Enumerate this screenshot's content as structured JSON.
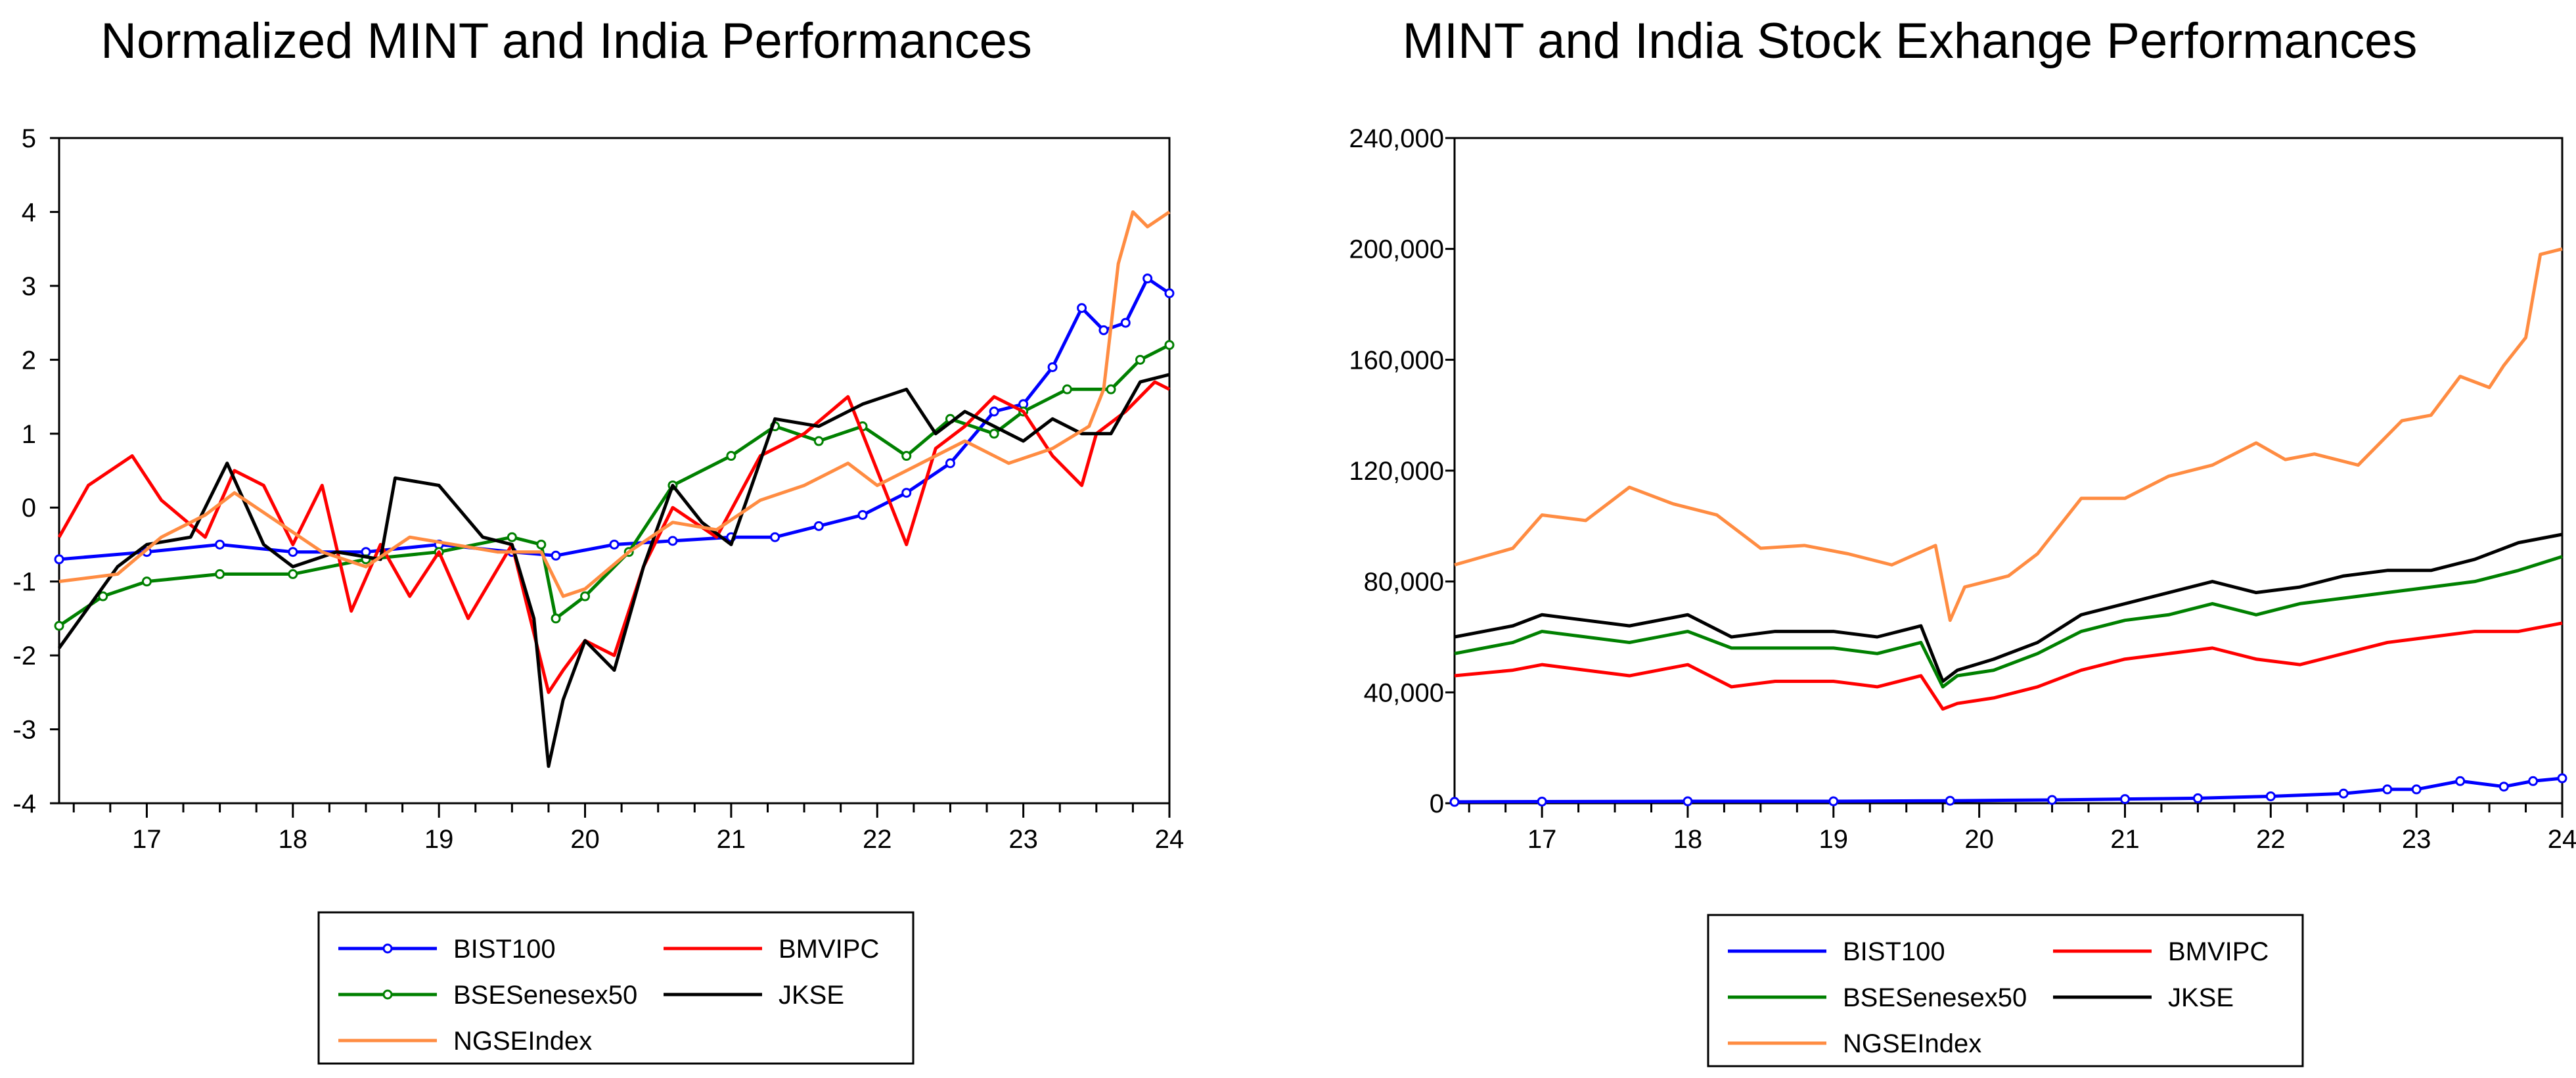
{
  "chart_data": [
    {
      "type": "line",
      "title": "Normalized MINT and India Performances",
      "xlabel": "",
      "ylabel": "",
      "x_tick_labels": [
        "17",
        "18",
        "19",
        "20",
        "21",
        "22",
        "23",
        "24"
      ],
      "x_tick_values": [
        2017,
        2018,
        2019,
        2020,
        2021,
        2022,
        2023,
        2024
      ],
      "xlim": [
        2016.4,
        2024.0
      ],
      "y_tick_labels": [
        "5",
        "4",
        "3",
        "2",
        "1",
        "0",
        "-1",
        "-2",
        "-3",
        "-4"
      ],
      "y_tick_values": [
        5,
        4,
        3,
        2,
        1,
        0,
        -1,
        -2,
        -3,
        -4
      ],
      "ylim": [
        -4,
        5
      ],
      "legend_position": "bottom-center",
      "series": [
        {
          "name": "BIST100",
          "color": "#0000ff",
          "marker": "circle",
          "x": [
            2016.4,
            2017.0,
            2017.5,
            2018.0,
            2018.5,
            2019.0,
            2019.5,
            2019.8,
            2020.2,
            2020.6,
            2021.0,
            2021.3,
            2021.6,
            2021.9,
            2022.2,
            2022.5,
            2022.8,
            2023.0,
            2023.2,
            2023.4,
            2023.55,
            2023.7,
            2023.85,
            2024.0
          ],
          "values": [
            -0.7,
            -0.6,
            -0.5,
            -0.6,
            -0.6,
            -0.5,
            -0.6,
            -0.65,
            -0.5,
            -0.45,
            -0.4,
            -0.4,
            -0.25,
            -0.1,
            0.2,
            0.6,
            1.3,
            1.4,
            1.9,
            2.7,
            2.4,
            2.5,
            3.1,
            2.9
          ]
        },
        {
          "name": "BSESenesex50",
          "color": "#008000",
          "marker": "circle",
          "x": [
            2016.4,
            2016.7,
            2017.0,
            2017.5,
            2018.0,
            2018.5,
            2019.0,
            2019.5,
            2019.7,
            2019.8,
            2020.0,
            2020.3,
            2020.6,
            2021.0,
            2021.3,
            2021.6,
            2021.9,
            2022.2,
            2022.5,
            2022.8,
            2023.0,
            2023.3,
            2023.6,
            2023.8,
            2024.0
          ],
          "values": [
            -1.6,
            -1.2,
            -1.0,
            -0.9,
            -0.9,
            -0.7,
            -0.6,
            -0.4,
            -0.5,
            -1.5,
            -1.2,
            -0.6,
            0.3,
            0.7,
            1.1,
            0.9,
            1.1,
            0.7,
            1.2,
            1.0,
            1.3,
            1.6,
            1.6,
            2.0,
            2.2
          ]
        },
        {
          "name": "BMVIPC",
          "color": "#ff0000",
          "marker": "none",
          "x": [
            2016.4,
            2016.6,
            2016.9,
            2017.1,
            2017.4,
            2017.6,
            2017.8,
            2018.0,
            2018.2,
            2018.4,
            2018.6,
            2018.8,
            2019.0,
            2019.2,
            2019.5,
            2019.75,
            2019.85,
            2020.0,
            2020.2,
            2020.4,
            2020.6,
            2020.9,
            2021.2,
            2021.5,
            2021.8,
            2022.0,
            2022.2,
            2022.4,
            2022.6,
            2022.8,
            2023.0,
            2023.2,
            2023.4,
            2023.5,
            2023.7,
            2023.9,
            2024.0
          ],
          "values": [
            -0.4,
            0.3,
            0.7,
            0.1,
            -0.4,
            0.5,
            0.3,
            -0.5,
            0.3,
            -1.4,
            -0.5,
            -1.2,
            -0.6,
            -1.5,
            -0.5,
            -2.5,
            -2.2,
            -1.8,
            -2.0,
            -0.8,
            0.0,
            -0.4,
            0.7,
            1.0,
            1.5,
            0.5,
            -0.5,
            0.8,
            1.1,
            1.5,
            1.3,
            0.7,
            0.3,
            1.0,
            1.3,
            1.7,
            1.6
          ]
        },
        {
          "name": "JKSE",
          "color": "#000000",
          "marker": "none",
          "x": [
            2016.4,
            2016.8,
            2017.0,
            2017.3,
            2017.55,
            2017.8,
            2018.0,
            2018.3,
            2018.6,
            2018.7,
            2019.0,
            2019.3,
            2019.5,
            2019.65,
            2019.75,
            2019.85,
            2020.0,
            2020.2,
            2020.4,
            2020.6,
            2020.8,
            2021.0,
            2021.3,
            2021.6,
            2021.9,
            2022.2,
            2022.4,
            2022.6,
            2022.8,
            2023.0,
            2023.2,
            2023.4,
            2023.6,
            2023.8,
            2024.0
          ],
          "values": [
            -1.9,
            -0.8,
            -0.5,
            -0.4,
            0.6,
            -0.5,
            -0.8,
            -0.6,
            -0.7,
            0.4,
            0.3,
            -0.4,
            -0.5,
            -1.5,
            -3.5,
            -2.6,
            -1.8,
            -2.2,
            -0.8,
            0.3,
            -0.2,
            -0.5,
            1.2,
            1.1,
            1.4,
            1.6,
            1.0,
            1.3,
            1.1,
            0.9,
            1.2,
            1.0,
            1.0,
            1.7,
            1.8
          ]
        },
        {
          "name": "NGSEIndex",
          "color": "#ff8c42",
          "marker": "none",
          "x": [
            2016.4,
            2016.8,
            2017.1,
            2017.4,
            2017.6,
            2017.9,
            2018.2,
            2018.5,
            2018.8,
            2019.1,
            2019.4,
            2019.7,
            2019.85,
            2020.0,
            2020.3,
            2020.6,
            2020.9,
            2021.2,
            2021.5,
            2021.8,
            2022.0,
            2022.3,
            2022.6,
            2022.9,
            2023.2,
            2023.45,
            2023.55,
            2023.65,
            2023.75,
            2023.85,
            2024.0
          ],
          "values": [
            -1.0,
            -0.9,
            -0.4,
            -0.1,
            0.2,
            -0.2,
            -0.6,
            -0.8,
            -0.4,
            -0.5,
            -0.6,
            -0.6,
            -1.2,
            -1.1,
            -0.6,
            -0.2,
            -0.3,
            0.1,
            0.3,
            0.6,
            0.3,
            0.6,
            0.9,
            0.6,
            0.8,
            1.1,
            1.6,
            3.3,
            4.0,
            3.8,
            4.0
          ]
        }
      ],
      "legend": [
        {
          "label": "BIST100",
          "color": "#0000ff",
          "marker": "circle"
        },
        {
          "label": "BMVIPC",
          "color": "#ff0000",
          "marker": "none"
        },
        {
          "label": "BSESenesex50",
          "color": "#008000",
          "marker": "circle"
        },
        {
          "label": "JKSE",
          "color": "#000000",
          "marker": "none"
        },
        {
          "label": "NGSEIndex",
          "color": "#ff8c42",
          "marker": "none"
        }
      ]
    },
    {
      "type": "line",
      "title": "MINT and India Stock Exhange Performances",
      "xlabel": "",
      "ylabel": "",
      "x_tick_labels": [
        "17",
        "18",
        "19",
        "20",
        "21",
        "22",
        "23",
        "24"
      ],
      "x_tick_values": [
        2017,
        2018,
        2019,
        2020,
        2021,
        2022,
        2023,
        2024
      ],
      "xlim": [
        2016.4,
        2024.0
      ],
      "y_tick_labels": [
        "240,000",
        "200,000",
        "160,000",
        "120,000",
        "80,000",
        "40,000",
        "0"
      ],
      "y_tick_values": [
        240000,
        200000,
        160000,
        120000,
        80000,
        40000,
        0
      ],
      "ylim": [
        0,
        240000
      ],
      "legend_position": "bottom-center",
      "series": [
        {
          "name": "NGSEIndex",
          "color": "#ff8c42",
          "marker": "none",
          "x": [
            2016.4,
            2016.8,
            2017.0,
            2017.3,
            2017.6,
            2017.9,
            2018.2,
            2018.5,
            2018.8,
            2019.1,
            2019.4,
            2019.7,
            2019.8,
            2019.9,
            2020.2,
            2020.4,
            2020.7,
            2021.0,
            2021.3,
            2021.6,
            2021.9,
            2022.1,
            2022.3,
            2022.6,
            2022.9,
            2023.1,
            2023.3,
            2023.5,
            2023.6,
            2023.75,
            2023.85,
            2024.0
          ],
          "values": [
            86000,
            92000,
            104000,
            102000,
            114000,
            108000,
            104000,
            92000,
            93000,
            90000,
            86000,
            93000,
            66000,
            78000,
            82000,
            90000,
            110000,
            110000,
            118000,
            122000,
            130000,
            124000,
            126000,
            122000,
            138000,
            140000,
            154000,
            150000,
            158000,
            168000,
            198000,
            200000
          ]
        },
        {
          "name": "JKSE",
          "color": "#000000",
          "marker": "none",
          "x": [
            2016.4,
            2016.8,
            2017.0,
            2017.3,
            2017.6,
            2018.0,
            2018.3,
            2018.6,
            2019.0,
            2019.3,
            2019.6,
            2019.75,
            2019.85,
            2020.1,
            2020.4,
            2020.7,
            2021.0,
            2021.3,
            2021.6,
            2021.9,
            2022.2,
            2022.5,
            2022.8,
            2023.1,
            2023.4,
            2023.7,
            2024.0
          ],
          "values": [
            60000,
            64000,
            68000,
            66000,
            64000,
            68000,
            60000,
            62000,
            62000,
            60000,
            64000,
            44000,
            48000,
            52000,
            58000,
            68000,
            72000,
            76000,
            80000,
            76000,
            78000,
            82000,
            84000,
            84000,
            88000,
            94000,
            97000
          ]
        },
        {
          "name": "BSESenesex50",
          "color": "#008000",
          "marker": "none",
          "x": [
            2016.4,
            2016.8,
            2017.0,
            2017.3,
            2017.6,
            2018.0,
            2018.3,
            2018.6,
            2019.0,
            2019.3,
            2019.6,
            2019.75,
            2019.85,
            2020.1,
            2020.4,
            2020.7,
            2021.0,
            2021.3,
            2021.6,
            2021.9,
            2022.2,
            2022.5,
            2022.8,
            2023.1,
            2023.4,
            2023.7,
            2024.0
          ],
          "values": [
            54000,
            58000,
            62000,
            60000,
            58000,
            62000,
            56000,
            56000,
            56000,
            54000,
            58000,
            42000,
            46000,
            48000,
            54000,
            62000,
            66000,
            68000,
            72000,
            68000,
            72000,
            74000,
            76000,
            78000,
            80000,
            84000,
            89000
          ]
        },
        {
          "name": "BMVIPC",
          "color": "#ff0000",
          "marker": "none",
          "x": [
            2016.4,
            2016.8,
            2017.0,
            2017.3,
            2017.6,
            2018.0,
            2018.3,
            2018.6,
            2019.0,
            2019.3,
            2019.6,
            2019.75,
            2019.85,
            2020.1,
            2020.4,
            2020.7,
            2021.0,
            2021.3,
            2021.6,
            2021.9,
            2022.2,
            2022.5,
            2022.8,
            2023.1,
            2023.4,
            2023.7,
            2024.0
          ],
          "values": [
            46000,
            48000,
            50000,
            48000,
            46000,
            50000,
            42000,
            44000,
            44000,
            42000,
            46000,
            34000,
            36000,
            38000,
            42000,
            48000,
            52000,
            54000,
            56000,
            52000,
            50000,
            54000,
            58000,
            60000,
            62000,
            62000,
            65000
          ]
        },
        {
          "name": "BIST100",
          "color": "#0000ff",
          "marker": "circle",
          "x": [
            2016.4,
            2017.0,
            2018.0,
            2019.0,
            2019.8,
            2020.5,
            2021.0,
            2021.5,
            2022.0,
            2022.5,
            2022.8,
            2023.0,
            2023.3,
            2023.6,
            2023.8,
            2024.0
          ],
          "values": [
            500,
            600,
            700,
            700,
            900,
            1200,
            1500,
            1800,
            2500,
            3500,
            5000,
            5000,
            8000,
            6000,
            8000,
            9000
          ]
        }
      ],
      "legend": [
        {
          "label": "BIST100",
          "color": "#0000ff",
          "marker": "none"
        },
        {
          "label": "BMVIPC",
          "color": "#ff0000",
          "marker": "none"
        },
        {
          "label": "BSESenesex50",
          "color": "#008000",
          "marker": "none"
        },
        {
          "label": "JKSE",
          "color": "#000000",
          "marker": "none"
        },
        {
          "label": "NGSEIndex",
          "color": "#ff8c42",
          "marker": "none"
        }
      ]
    }
  ]
}
